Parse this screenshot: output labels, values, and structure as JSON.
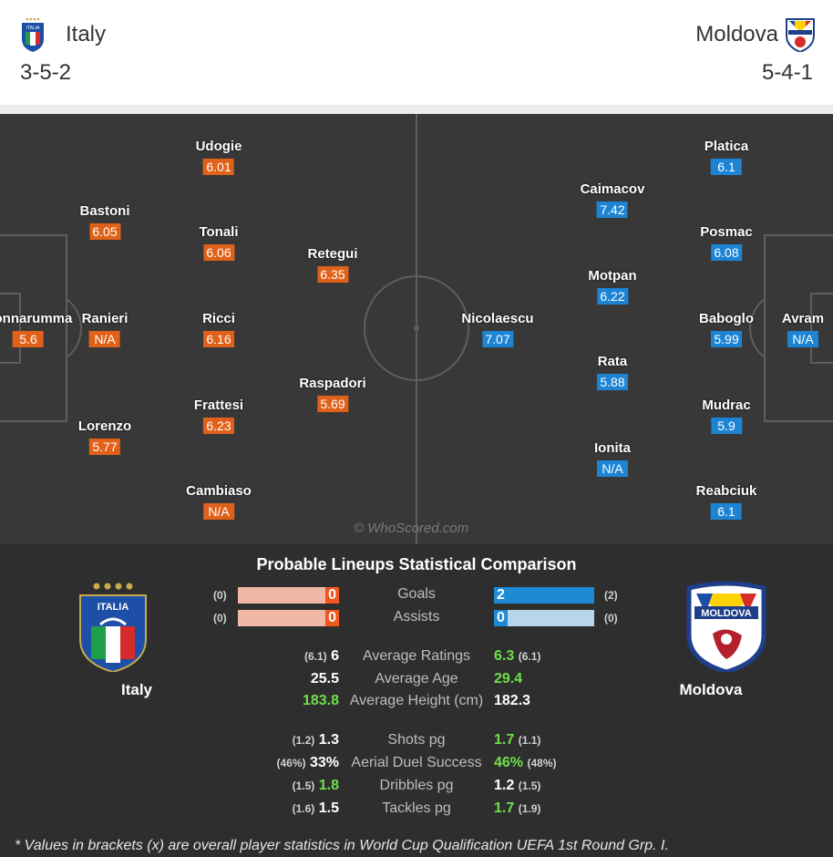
{
  "header": {
    "home": {
      "name": "Italy",
      "formation": "3-5-2"
    },
    "away": {
      "name": "Moldova",
      "formation": "5-4-1"
    }
  },
  "pitch": {
    "watermark": "© WhoScored.com",
    "home_players": [
      {
        "name": "Donnarumma",
        "rating": "5.6"
      },
      {
        "name": "Bastoni",
        "rating": "6.05"
      },
      {
        "name": "Ranieri",
        "rating": "N/A"
      },
      {
        "name": "Lorenzo",
        "rating": "5.77"
      },
      {
        "name": "Udogie",
        "rating": "6.01"
      },
      {
        "name": "Tonali",
        "rating": "6.06"
      },
      {
        "name": "Ricci",
        "rating": "6.16"
      },
      {
        "name": "Frattesi",
        "rating": "6.23"
      },
      {
        "name": "Cambiaso",
        "rating": "N/A"
      },
      {
        "name": "Retegui",
        "rating": "6.35"
      },
      {
        "name": "Raspadori",
        "rating": "5.69"
      }
    ],
    "away_players": [
      {
        "name": "Avram",
        "rating": "N/A"
      },
      {
        "name": "Platica",
        "rating": "6.1"
      },
      {
        "name": "Posmac",
        "rating": "6.08"
      },
      {
        "name": "Baboglo",
        "rating": "5.99"
      },
      {
        "name": "Mudrac",
        "rating": "5.9"
      },
      {
        "name": "Reabciuk",
        "rating": "6.1"
      },
      {
        "name": "Caimacov",
        "rating": "7.42"
      },
      {
        "name": "Motpan",
        "rating": "6.22"
      },
      {
        "name": "Rata",
        "rating": "5.88"
      },
      {
        "name": "Ionita",
        "rating": "N/A"
      },
      {
        "name": "Nicolaescu",
        "rating": "7.07"
      }
    ]
  },
  "stats": {
    "title": "Probable Lineups Statistical Comparison",
    "home_label": "Italy",
    "away_label": "Moldova",
    "bars": [
      {
        "label": "Goals",
        "home": "0",
        "home_br": "(0)",
        "away": "2",
        "away_br": "(2)",
        "home_fill": 0.0,
        "away_fill": 1.0
      },
      {
        "label": "Assists",
        "home": "0",
        "home_br": "(0)",
        "away": "0",
        "away_br": "(0)",
        "home_fill": 0.0,
        "away_fill": 0.0
      }
    ],
    "rows": [
      {
        "label": "Average Ratings",
        "home_br": "(6.1)",
        "home": "6",
        "away": "6.3",
        "away_br": "(6.1)",
        "winner": "away"
      },
      {
        "label": "Average Age",
        "home_br": "",
        "home": "25.5",
        "away": "29.4",
        "away_br": "",
        "winner": "away"
      },
      {
        "label": "Average Height (cm)",
        "home_br": "",
        "home": "183.8",
        "away": "182.3",
        "away_br": "",
        "winner": "home"
      },
      {
        "label": "Shots pg",
        "home_br": "(1.2)",
        "home": "1.3",
        "away": "1.7",
        "away_br": "(1.1)",
        "winner": "away"
      },
      {
        "label": "Aerial Duel Success",
        "home_br": "(46%)",
        "home": "33%",
        "away": "46%",
        "away_br": "(48%)",
        "winner": "away"
      },
      {
        "label": "Dribbles pg",
        "home_br": "(1.5)",
        "home": "1.8",
        "away": "1.2",
        "away_br": "(1.5)",
        "winner": "home"
      },
      {
        "label": "Tackles pg",
        "home_br": "(1.6)",
        "home": "1.5",
        "away": "1.7",
        "away_br": "(1.9)",
        "winner": "away"
      }
    ],
    "footnote": "* Values in brackets (x) are overall player statistics in World Cup Qualification UEFA 1st Round Grp. I."
  },
  "colors": {
    "home": "#e0611a",
    "away": "#1d84d4",
    "highlight": "#6fe04a"
  }
}
